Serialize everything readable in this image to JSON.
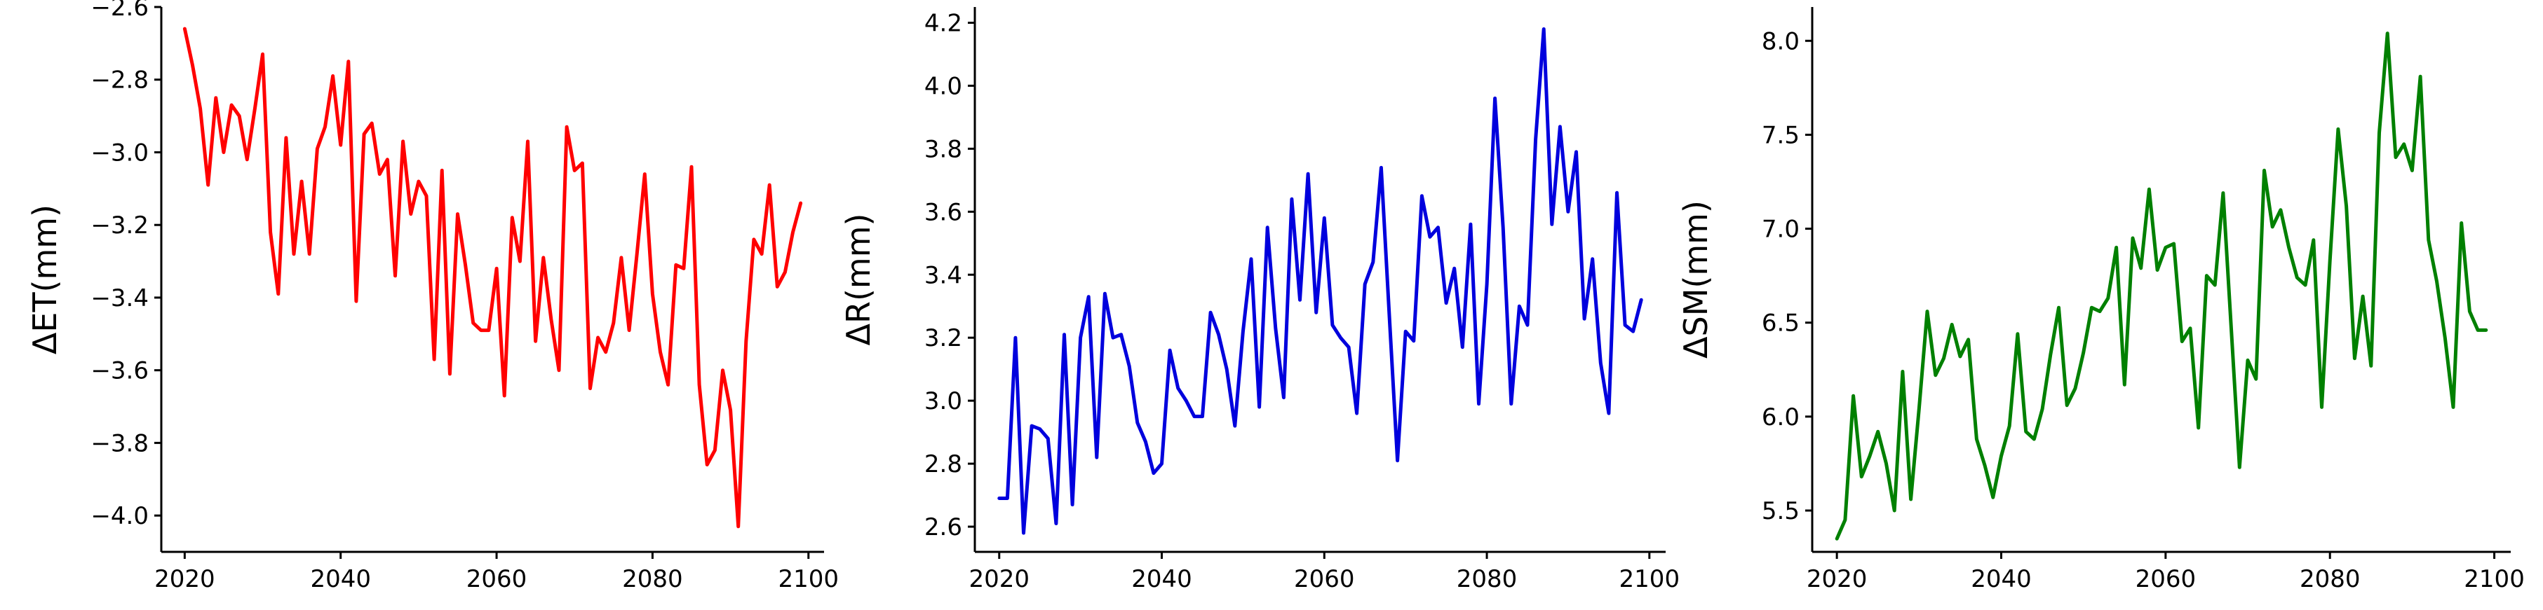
{
  "chart_data": [
    {
      "type": "line",
      "ylabel": "ΔET(mm)",
      "xlabel": "",
      "xlim": [
        2017,
        2102
      ],
      "ylim": [
        -4.1,
        -2.6
      ],
      "xticks": [
        2020,
        2040,
        2060,
        2080,
        2100
      ],
      "yticks": [
        -4.0,
        -3.8,
        -3.6,
        -3.4,
        -3.2,
        -3.0,
        -2.8,
        -2.6
      ],
      "ytick_labels": [
        "−4.0",
        "−3.8",
        "−3.6",
        "−3.4",
        "−3.2",
        "−3.0",
        "−2.8",
        "−2.6"
      ],
      "grid": false,
      "color": "#ff0000",
      "x": [
        2020,
        2021,
        2022,
        2023,
        2024,
        2025,
        2026,
        2027,
        2028,
        2029,
        2030,
        2031,
        2032,
        2033,
        2034,
        2035,
        2036,
        2037,
        2038,
        2039,
        2040,
        2041,
        2042,
        2043,
        2044,
        2045,
        2046,
        2047,
        2048,
        2049,
        2050,
        2051,
        2052,
        2053,
        2054,
        2055,
        2056,
        2057,
        2058,
        2059,
        2060,
        2061,
        2062,
        2063,
        2064,
        2065,
        2066,
        2067,
        2068,
        2069,
        2070,
        2071,
        2072,
        2073,
        2074,
        2075,
        2076,
        2077,
        2078,
        2079,
        2080,
        2081,
        2082,
        2083,
        2084,
        2085,
        2086,
        2087,
        2088,
        2089,
        2090,
        2091,
        2092,
        2093,
        2094,
        2095,
        2096,
        2097,
        2098,
        2099
      ],
      "y": [
        -2.66,
        -2.76,
        -2.88,
        -3.09,
        -2.85,
        -3.0,
        -2.87,
        -2.9,
        -3.02,
        -2.88,
        -2.73,
        -3.22,
        -3.39,
        -2.96,
        -3.28,
        -3.08,
        -3.28,
        -2.99,
        -2.93,
        -2.79,
        -2.98,
        -2.75,
        -3.41,
        -2.95,
        -2.92,
        -3.06,
        -3.02,
        -3.34,
        -2.97,
        -3.17,
        -3.08,
        -3.12,
        -3.57,
        -3.05,
        -3.61,
        -3.17,
        -3.31,
        -3.47,
        -3.49,
        -3.49,
        -3.32,
        -3.67,
        -3.18,
        -3.3,
        -2.97,
        -3.52,
        -3.29,
        -3.46,
        -3.6,
        -2.93,
        -3.05,
        -3.03,
        -3.65,
        -3.51,
        -3.55,
        -3.47,
        -3.29,
        -3.49,
        -3.28,
        -3.06,
        -3.39,
        -3.55,
        -3.64,
        -3.31,
        -3.32,
        -3.04,
        -3.64,
        -3.86,
        -3.82,
        -3.6,
        -3.71,
        -4.03,
        -3.52,
        -3.24,
        -3.28,
        -3.09,
        -3.37,
        -3.33,
        -3.22,
        -3.14
      ]
    },
    {
      "type": "line",
      "ylabel": "ΔR(mm)",
      "xlabel": "",
      "xlim": [
        2017,
        2102
      ],
      "ylim": [
        2.52,
        4.25
      ],
      "xticks": [
        2020,
        2040,
        2060,
        2080,
        2100
      ],
      "yticks": [
        2.6,
        2.8,
        3.0,
        3.2,
        3.4,
        3.6,
        3.8,
        4.0,
        4.2
      ],
      "ytick_labels": [
        "2.6",
        "2.8",
        "3.0",
        "3.2",
        "3.4",
        "3.6",
        "3.8",
        "4.0",
        "4.2"
      ],
      "grid": false,
      "color": "#0000dd",
      "x": [
        2020,
        2021,
        2022,
        2023,
        2024,
        2025,
        2026,
        2027,
        2028,
        2029,
        2030,
        2031,
        2032,
        2033,
        2034,
        2035,
        2036,
        2037,
        2038,
        2039,
        2040,
        2041,
        2042,
        2043,
        2044,
        2045,
        2046,
        2047,
        2048,
        2049,
        2050,
        2051,
        2052,
        2053,
        2054,
        2055,
        2056,
        2057,
        2058,
        2059,
        2060,
        2061,
        2062,
        2063,
        2064,
        2065,
        2066,
        2067,
        2068,
        2069,
        2070,
        2071,
        2072,
        2073,
        2074,
        2075,
        2076,
        2077,
        2078,
        2079,
        2080,
        2081,
        2082,
        2083,
        2084,
        2085,
        2086,
        2087,
        2088,
        2089,
        2090,
        2091,
        2092,
        2093,
        2094,
        2095,
        2096,
        2097,
        2098,
        2099
      ],
      "y": [
        2.69,
        2.69,
        3.2,
        2.58,
        2.92,
        2.91,
        2.88,
        2.61,
        3.21,
        2.67,
        3.2,
        3.33,
        2.82,
        3.34,
        3.2,
        3.21,
        3.11,
        2.93,
        2.87,
        2.77,
        2.8,
        3.16,
        3.04,
        3.0,
        2.95,
        2.95,
        3.28,
        3.21,
        3.1,
        2.92,
        3.22,
        3.45,
        2.98,
        3.55,
        3.23,
        3.01,
        3.64,
        3.32,
        3.72,
        3.28,
        3.58,
        3.24,
        3.2,
        3.17,
        2.96,
        3.37,
        3.44,
        3.74,
        3.27,
        2.81,
        3.22,
        3.19,
        3.65,
        3.52,
        3.55,
        3.31,
        3.42,
        3.17,
        3.56,
        2.99,
        3.37,
        3.96,
        3.55,
        2.99,
        3.3,
        3.24,
        3.83,
        4.18,
        3.56,
        3.87,
        3.6,
        3.79,
        3.26,
        3.45,
        3.12,
        2.96,
        3.66,
        3.24,
        3.22,
        3.32
      ]
    },
    {
      "type": "line",
      "ylabel": "ΔSM(mm)",
      "xlabel": "",
      "xlim": [
        2017,
        2102
      ],
      "ylim": [
        5.28,
        8.18
      ],
      "xticks": [
        2020,
        2040,
        2060,
        2080,
        2100
      ],
      "yticks": [
        5.5,
        6.0,
        6.5,
        7.0,
        7.5,
        8.0
      ],
      "ytick_labels": [
        "5.5",
        "6.0",
        "6.5",
        "7.0",
        "7.5",
        "8.0"
      ],
      "grid": false,
      "color": "#008000",
      "x": [
        2020,
        2021,
        2022,
        2023,
        2024,
        2025,
        2026,
        2027,
        2028,
        2029,
        2030,
        2031,
        2032,
        2033,
        2034,
        2035,
        2036,
        2037,
        2038,
        2039,
        2040,
        2041,
        2042,
        2043,
        2044,
        2045,
        2046,
        2047,
        2048,
        2049,
        2050,
        2051,
        2052,
        2053,
        2054,
        2055,
        2056,
        2057,
        2058,
        2059,
        2060,
        2061,
        2062,
        2063,
        2064,
        2065,
        2066,
        2067,
        2068,
        2069,
        2070,
        2071,
        2072,
        2073,
        2074,
        2075,
        2076,
        2077,
        2078,
        2079,
        2080,
        2081,
        2082,
        2083,
        2084,
        2085,
        2086,
        2087,
        2088,
        2089,
        2090,
        2091,
        2092,
        2093,
        2094,
        2095,
        2096,
        2097,
        2098,
        2099
      ],
      "y": [
        5.35,
        5.45,
        6.11,
        5.68,
        5.79,
        5.92,
        5.75,
        5.5,
        6.24,
        5.56,
        6.04,
        6.56,
        6.22,
        6.31,
        6.49,
        6.32,
        6.41,
        5.88,
        5.74,
        5.57,
        5.79,
        5.95,
        6.44,
        5.92,
        5.88,
        6.04,
        6.33,
        6.58,
        6.06,
        6.15,
        6.34,
        6.58,
        6.56,
        6.63,
        6.9,
        6.17,
        6.95,
        6.79,
        7.21,
        6.78,
        6.9,
        6.92,
        6.4,
        6.47,
        5.94,
        6.75,
        6.7,
        7.19,
        6.46,
        5.73,
        6.3,
        6.2,
        7.31,
        7.01,
        7.1,
        6.9,
        6.74,
        6.7,
        6.94,
        6.05,
        6.83,
        7.53,
        7.12,
        6.31,
        6.64,
        6.27,
        7.51,
        8.04,
        7.38,
        7.45,
        7.31,
        7.81,
        6.94,
        6.72,
        6.42,
        6.05,
        7.03,
        6.56,
        6.46,
        6.46
      ]
    }
  ]
}
